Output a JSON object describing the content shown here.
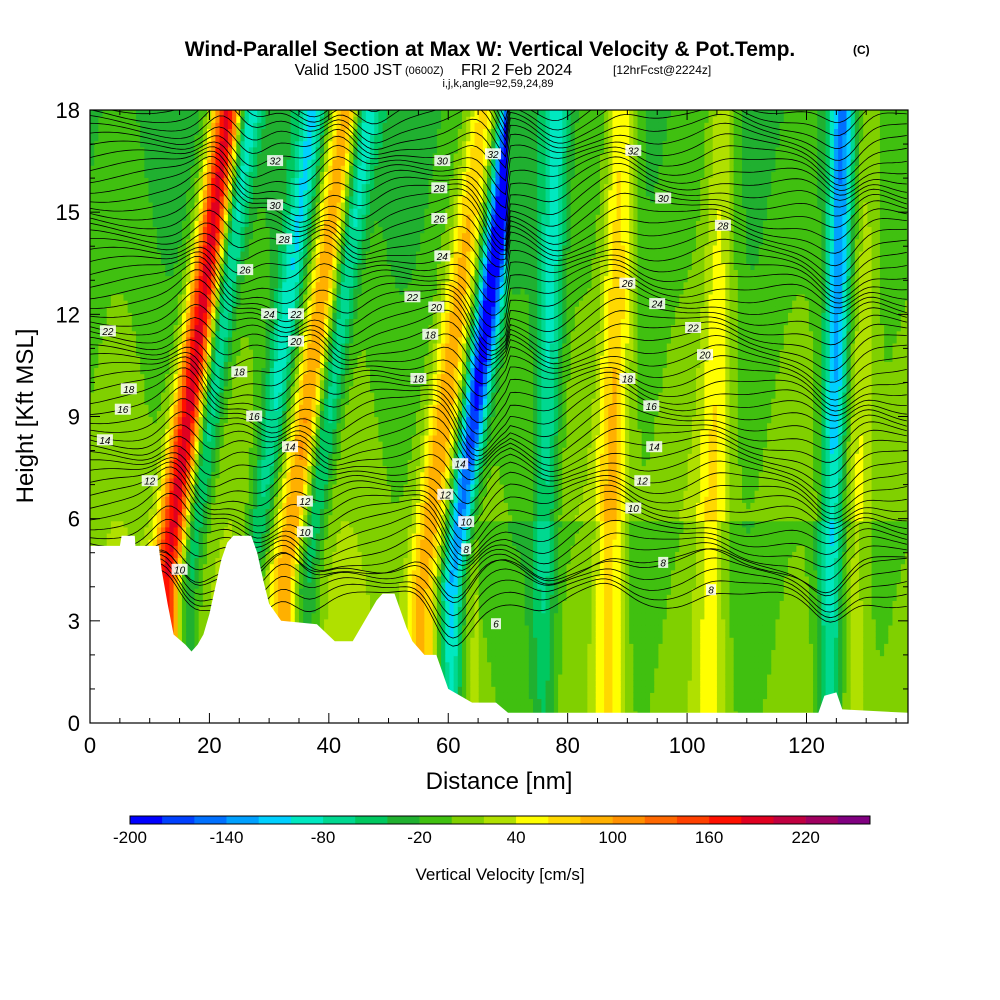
{
  "title_main": "Wind-Parallel Section at Max W: Vertical Velocity & Pot.Temp.",
  "title_c": "(C)",
  "subtitle_a": "Valid 1500 JST",
  "subtitle_b": "(0600Z)",
  "subtitle_c": "FRI 2 Feb 2024",
  "subtitle_d": "[12hrFcst@2224z]",
  "subtitle_e": "i,j,k,angle=92,59,24,89",
  "chart_data": {
    "type": "heatmap",
    "xlabel": "Distance [nm]",
    "ylabel": "Height [Kft MSL]",
    "xlim": [
      0,
      137
    ],
    "ylim": [
      0,
      18
    ],
    "x_ticks": [
      0,
      20,
      40,
      60,
      80,
      100,
      120
    ],
    "y_ticks": [
      0,
      3,
      6,
      9,
      12,
      15,
      18
    ],
    "colorbar": {
      "label": "Vertical Velocity [cm/s]",
      "min": -200,
      "max": 260,
      "step": 20,
      "tick_values": [
        -200,
        -140,
        -80,
        -20,
        40,
        100,
        160,
        220
      ],
      "colors": [
        "#0000ff",
        "#0040ff",
        "#0070ff",
        "#00a0ff",
        "#00d0ff",
        "#00e8c0",
        "#00d890",
        "#00c860",
        "#20b030",
        "#40c010",
        "#80d000",
        "#b0e000",
        "#ffff00",
        "#ffd800",
        "#ffb000",
        "#ff9000",
        "#ff6800",
        "#ff4000",
        "#ff1000",
        "#e00020",
        "#c00040",
        "#a00060",
        "#800080"
      ]
    },
    "updrafts": [
      {
        "x": 12.8,
        "w": 210
      },
      {
        "x": 32.5,
        "w": 110
      },
      {
        "x": 55.5,
        "w": 90
      },
      {
        "x": 87,
        "w": 90
      },
      {
        "x": 104,
        "w": 60
      },
      {
        "x": 128,
        "w": 50
      }
    ],
    "downdrafts": [
      {
        "x": 16,
        "w": -110
      },
      {
        "x": 27,
        "w": -80
      },
      {
        "x": 36,
        "w": -90
      },
      {
        "x": 60.5,
        "w": -200
      },
      {
        "x": 76,
        "w": -80
      },
      {
        "x": 124,
        "w": -120
      }
    ],
    "terrain": [
      [
        0,
        5.2
      ],
      [
        5,
        5.2
      ],
      [
        5.3,
        5.5
      ],
      [
        7.5,
        5.5
      ],
      [
        7.6,
        5.2
      ],
      [
        11.5,
        5.2
      ],
      [
        12,
        4.5
      ],
      [
        13,
        3.5
      ],
      [
        14,
        2.6
      ],
      [
        16,
        2.3
      ],
      [
        17,
        2.1
      ],
      [
        18,
        2.3
      ],
      [
        19,
        2.6
      ],
      [
        20,
        3.2
      ],
      [
        21,
        4
      ],
      [
        22,
        4.8
      ],
      [
        23,
        5.3
      ],
      [
        24,
        5.5
      ],
      [
        27,
        5.5
      ],
      [
        28,
        5
      ],
      [
        29,
        4.2
      ],
      [
        30,
        3.5
      ],
      [
        32,
        3.0
      ],
      [
        38,
        2.9
      ],
      [
        41,
        2.4
      ],
      [
        44,
        2.4
      ],
      [
        46,
        3.0
      ],
      [
        48,
        3.6
      ],
      [
        49,
        3.8
      ],
      [
        51,
        3.8
      ],
      [
        52,
        3.3
      ],
      [
        53,
        2.8
      ],
      [
        54,
        2.4
      ],
      [
        56,
        2.0
      ],
      [
        58,
        2.0
      ],
      [
        59,
        1.5
      ],
      [
        60,
        1.0
      ],
      [
        62,
        0.8
      ],
      [
        64,
        0.6
      ],
      [
        68,
        0.6
      ],
      [
        70,
        0.3
      ],
      [
        122,
        0.3
      ],
      [
        123,
        0.8
      ],
      [
        125,
        0.9
      ],
      [
        126,
        0.4
      ],
      [
        137,
        0.3
      ]
    ],
    "theta_labels": [
      {
        "x": 3,
        "y": 11.5,
        "text": "22"
      },
      {
        "x": 6.5,
        "y": 9.8,
        "text": "18"
      },
      {
        "x": 5.5,
        "y": 9.2,
        "text": "16"
      },
      {
        "x": 2.5,
        "y": 8.3,
        "text": "14"
      },
      {
        "x": 10,
        "y": 7.1,
        "text": "12"
      },
      {
        "x": 15,
        "y": 4.5,
        "text": "10"
      },
      {
        "x": 31,
        "y": 16.5,
        "text": "32"
      },
      {
        "x": 31,
        "y": 15.2,
        "text": "30"
      },
      {
        "x": 32.5,
        "y": 14.2,
        "text": "28"
      },
      {
        "x": 26,
        "y": 13.3,
        "text": "26"
      },
      {
        "x": 30,
        "y": 12.0,
        "text": "24"
      },
      {
        "x": 34.5,
        "y": 12.0,
        "text": "22"
      },
      {
        "x": 34.5,
        "y": 11.2,
        "text": "20"
      },
      {
        "x": 25,
        "y": 10.3,
        "text": "18"
      },
      {
        "x": 27.5,
        "y": 9.0,
        "text": "16"
      },
      {
        "x": 33.5,
        "y": 8.1,
        "text": "14"
      },
      {
        "x": 36,
        "y": 6.5,
        "text": "12"
      },
      {
        "x": 36,
        "y": 5.6,
        "text": "10"
      },
      {
        "x": 59,
        "y": 16.5,
        "text": "30"
      },
      {
        "x": 67.5,
        "y": 16.7,
        "text": "32"
      },
      {
        "x": 58.5,
        "y": 15.7,
        "text": "28"
      },
      {
        "x": 58.5,
        "y": 14.8,
        "text": "26"
      },
      {
        "x": 59,
        "y": 13.7,
        "text": "24"
      },
      {
        "x": 54,
        "y": 12.5,
        "text": "22"
      },
      {
        "x": 58,
        "y": 12.2,
        "text": "20"
      },
      {
        "x": 57,
        "y": 11.4,
        "text": "18"
      },
      {
        "x": 55,
        "y": 10.1,
        "text": "18"
      },
      {
        "x": 62,
        "y": 7.6,
        "text": "14"
      },
      {
        "x": 59.5,
        "y": 6.7,
        "text": "12"
      },
      {
        "x": 63,
        "y": 5.9,
        "text": "10"
      },
      {
        "x": 63,
        "y": 5.1,
        "text": "8"
      },
      {
        "x": 68,
        "y": 2.9,
        "text": "6"
      },
      {
        "x": 91,
        "y": 16.8,
        "text": "32"
      },
      {
        "x": 96,
        "y": 15.4,
        "text": "30"
      },
      {
        "x": 106,
        "y": 14.6,
        "text": "28"
      },
      {
        "x": 90,
        "y": 12.9,
        "text": "26"
      },
      {
        "x": 95,
        "y": 12.3,
        "text": "24"
      },
      {
        "x": 101,
        "y": 11.6,
        "text": "22"
      },
      {
        "x": 103,
        "y": 10.8,
        "text": "20"
      },
      {
        "x": 90,
        "y": 10.1,
        "text": "18"
      },
      {
        "x": 94,
        "y": 9.3,
        "text": "16"
      },
      {
        "x": 94.5,
        "y": 8.1,
        "text": "14"
      },
      {
        "x": 92.5,
        "y": 7.1,
        "text": "12"
      },
      {
        "x": 91,
        "y": 6.3,
        "text": "10"
      },
      {
        "x": 96,
        "y": 4.7,
        "text": "8"
      },
      {
        "x": 104,
        "y": 3.9,
        "text": "8"
      }
    ]
  }
}
